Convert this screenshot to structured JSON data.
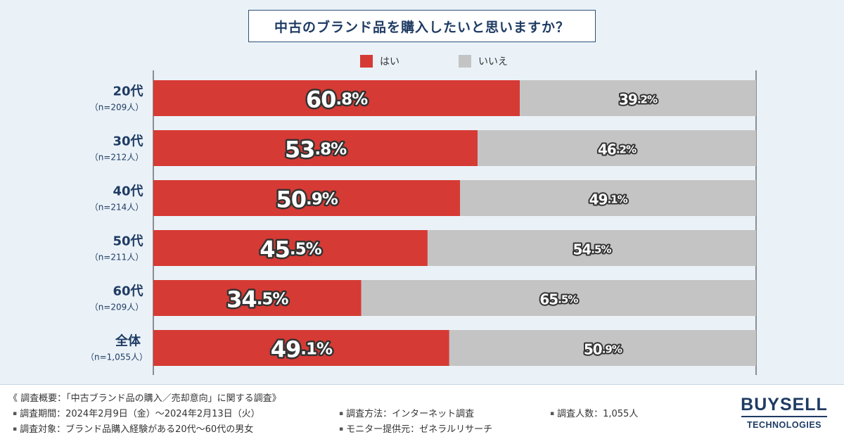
{
  "title": "中古のブランド品を購入したいと思いますか？",
  "chart_data": {
    "type": "bar",
    "orientation": "horizontal-stacked-100",
    "title": "中古のブランド品を購入したいと思いますか？",
    "xlim": [
      0,
      100
    ],
    "categories": [
      {
        "name": "20代",
        "n": "（n=209人）"
      },
      {
        "name": "30代",
        "n": "（n=212人）"
      },
      {
        "name": "40代",
        "n": "（n=214人）"
      },
      {
        "name": "50代",
        "n": "（n=211人）"
      },
      {
        "name": "60代",
        "n": "（n=209人）"
      },
      {
        "name": "全体",
        "n": "（n=1,055人）"
      }
    ],
    "series": [
      {
        "name": "はい",
        "color": "#d63a34",
        "values": [
          60.8,
          53.8,
          50.9,
          45.5,
          34.5,
          49.1
        ]
      },
      {
        "name": "いいえ",
        "color": "#c4c4c4",
        "values": [
          39.2,
          46.2,
          49.1,
          54.5,
          65.5,
          50.9
        ]
      }
    ],
    "value_suffix": "%"
  },
  "footer": {
    "overview": "《 調査概要：「中古ブランド品の購入／売却意向」に関する調査》",
    "period": "調査期間：2024年2月9日（金）〜2024年2月13日（火）",
    "target": "調査対象：ブランド品購入経験がある20代〜60代の男女",
    "method": "調査方法：インターネット調査",
    "provider": "モニター提供元：ゼネラルリサーチ",
    "count": "調査人数：1,055人",
    "bullet": "▪"
  },
  "logo": {
    "main": "BUYSELL",
    "sub": "TECHNOLOGIES"
  }
}
